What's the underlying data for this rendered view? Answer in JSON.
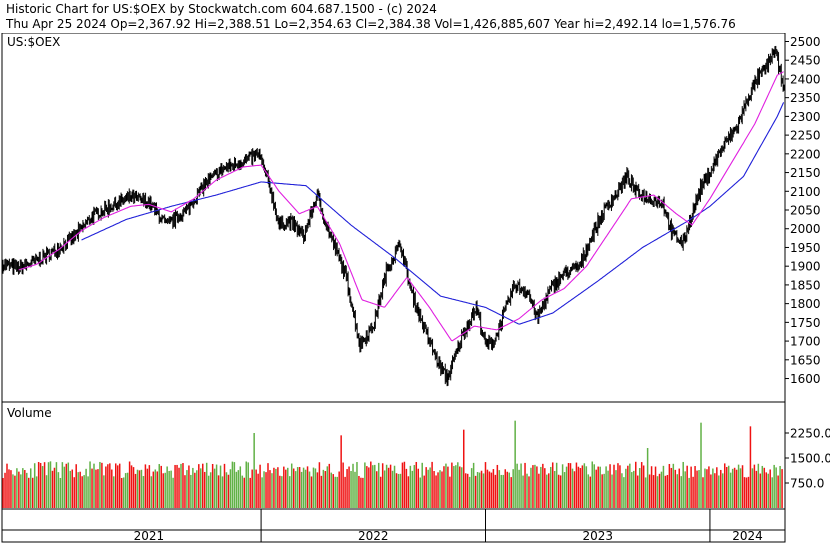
{
  "header": {
    "line1": "Historic Chart for US:$OEX by Stockwatch.com 604.687.1500 - (c) 2024",
    "line2": "Thu Apr 25 2024   Op=2,367.92  Hi=2,388.51  Lo=2,354.63  Cl=2,384.38   Vol=1,426,885,607   Year hi=2,492.14   lo=1,576.76"
  },
  "chart_data": [
    {
      "type": "line",
      "title": "US:$OEX",
      "ylim": [
        1540,
        2520
      ],
      "yticks": [
        1600,
        1650,
        1700,
        1750,
        1800,
        1850,
        1900,
        1950,
        2000,
        2050,
        2100,
        2150,
        2200,
        2250,
        2300,
        2350,
        2400,
        2450,
        2500
      ],
      "ytick_labels": [
        "1600",
        "1650",
        "1700",
        "1750",
        "1800",
        "1850",
        "1900",
        "1950",
        "2000",
        "2050",
        "2100",
        "2150",
        "2200",
        "2250",
        "2300",
        "2350",
        "2400",
        "2450",
        "2500"
      ],
      "xlim": [
        2020.85,
        2024.33
      ],
      "price_anchors": [
        [
          2020.85,
          1905
        ],
        [
          2020.92,
          1895
        ],
        [
          2021.0,
          1915
        ],
        [
          2021.08,
          1940
        ],
        [
          2021.17,
          1980
        ],
        [
          2021.25,
          2035
        ],
        [
          2021.33,
          2060
        ],
        [
          2021.42,
          2085
        ],
        [
          2021.5,
          2070
        ],
        [
          2021.58,
          2010
        ],
        [
          2021.67,
          2050
        ],
        [
          2021.75,
          2120
        ],
        [
          2021.83,
          2160
        ],
        [
          2021.92,
          2180
        ],
        [
          2021.99,
          2200
        ],
        [
          2022.04,
          2110
        ],
        [
          2022.08,
          2010
        ],
        [
          2022.13,
          2020
        ],
        [
          2022.19,
          1980
        ],
        [
          2022.25,
          2090
        ],
        [
          2022.29,
          2010
        ],
        [
          2022.33,
          1950
        ],
        [
          2022.38,
          1870
        ],
        [
          2022.44,
          1690
        ],
        [
          2022.5,
          1740
        ],
        [
          2022.56,
          1890
        ],
        [
          2022.62,
          1960
        ],
        [
          2022.67,
          1830
        ],
        [
          2022.73,
          1730
        ],
        [
          2022.79,
          1640
        ],
        [
          2022.83,
          1600
        ],
        [
          2022.9,
          1720
        ],
        [
          2022.96,
          1790
        ],
        [
          2023.0,
          1690
        ],
        [
          2023.04,
          1700
        ],
        [
          2023.08,
          1770
        ],
        [
          2023.13,
          1850
        ],
        [
          2023.19,
          1830
        ],
        [
          2023.23,
          1760
        ],
        [
          2023.29,
          1840
        ],
        [
          2023.35,
          1880
        ],
        [
          2023.42,
          1900
        ],
        [
          2023.48,
          1990
        ],
        [
          2023.54,
          2060
        ],
        [
          2023.58,
          2090
        ],
        [
          2023.63,
          2140
        ],
        [
          2023.67,
          2100
        ],
        [
          2023.73,
          2080
        ],
        [
          2023.79,
          2070
        ],
        [
          2023.83,
          1990
        ],
        [
          2023.88,
          1960
        ],
        [
          2023.92,
          2040
        ],
        [
          2023.96,
          2110
        ],
        [
          2024.0,
          2150
        ],
        [
          2024.04,
          2200
        ],
        [
          2024.08,
          2240
        ],
        [
          2024.12,
          2270
        ],
        [
          2024.17,
          2350
        ],
        [
          2024.21,
          2400
        ],
        [
          2024.25,
          2430
        ],
        [
          2024.29,
          2480
        ],
        [
          2024.31,
          2420
        ],
        [
          2024.33,
          2384
        ]
      ],
      "ma_short_anchors": [
        [
          2020.92,
          1890
        ],
        [
          2021.0,
          1905
        ],
        [
          2021.1,
          1945
        ],
        [
          2021.2,
          1995
        ],
        [
          2021.3,
          2030
        ],
        [
          2021.42,
          2060
        ],
        [
          2021.5,
          2065
        ],
        [
          2021.6,
          2045
        ],
        [
          2021.7,
          2080
        ],
        [
          2021.8,
          2130
        ],
        [
          2021.92,
          2165
        ],
        [
          2022.0,
          2170
        ],
        [
          2022.08,
          2100
        ],
        [
          2022.17,
          2040
        ],
        [
          2022.25,
          2060
        ],
        [
          2022.35,
          1960
        ],
        [
          2022.45,
          1810
        ],
        [
          2022.55,
          1790
        ],
        [
          2022.65,
          1870
        ],
        [
          2022.75,
          1790
        ],
        [
          2022.85,
          1700
        ],
        [
          2022.95,
          1740
        ],
        [
          2023.05,
          1730
        ],
        [
          2023.15,
          1760
        ],
        [
          2023.25,
          1810
        ],
        [
          2023.35,
          1840
        ],
        [
          2023.45,
          1900
        ],
        [
          2023.55,
          1990
        ],
        [
          2023.65,
          2080
        ],
        [
          2023.75,
          2090
        ],
        [
          2023.85,
          2040
        ],
        [
          2023.92,
          2010
        ],
        [
          2024.0,
          2080
        ],
        [
          2024.1,
          2180
        ],
        [
          2024.2,
          2280
        ],
        [
          2024.3,
          2410
        ],
        [
          2024.33,
          2420
        ]
      ],
      "ma_long_anchors": [
        [
          2021.2,
          1970
        ],
        [
          2021.4,
          2025
        ],
        [
          2021.6,
          2060
        ],
        [
          2021.8,
          2090
        ],
        [
          2022.0,
          2125
        ],
        [
          2022.2,
          2115
        ],
        [
          2022.4,
          2010
        ],
        [
          2022.6,
          1920
        ],
        [
          2022.8,
          1820
        ],
        [
          2023.0,
          1790
        ],
        [
          2023.15,
          1745
        ],
        [
          2023.3,
          1775
        ],
        [
          2023.5,
          1860
        ],
        [
          2023.7,
          1950
        ],
        [
          2023.9,
          2020
        ],
        [
          2024.0,
          2060
        ],
        [
          2024.15,
          2140
        ],
        [
          2024.3,
          2300
        ],
        [
          2024.33,
          2340
        ]
      ]
    },
    {
      "type": "bar",
      "title": "Volume",
      "ylim": [
        0,
        3150
      ],
      "yticks": [
        750,
        1500,
        2250
      ],
      "ytick_labels": [
        "750.0",
        "1500.0",
        "2250.0"
      ],
      "colors": {
        "up": "#61b146",
        "down": "#ef1212"
      },
      "volume_base": 1150,
      "volume_spikes": [
        [
          2021.97,
          2250
        ],
        [
          2022.36,
          2180
        ],
        [
          2022.9,
          2350
        ],
        [
          2023.13,
          2620
        ],
        [
          2023.72,
          1800
        ],
        [
          2023.96,
          2560
        ],
        [
          2024.18,
          2450
        ]
      ],
      "x_labels": [
        {
          "year": 2021,
          "label": "2021"
        },
        {
          "year": 2022,
          "label": "2022"
        },
        {
          "year": 2023,
          "label": "2023"
        },
        {
          "year": 2024,
          "label": "2024"
        }
      ]
    }
  ]
}
